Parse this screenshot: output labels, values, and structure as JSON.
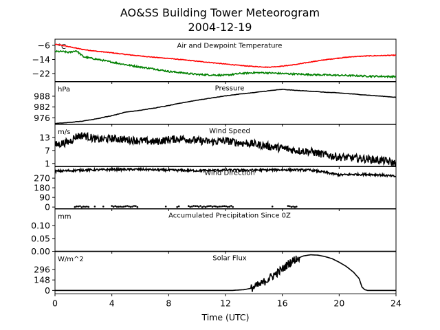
{
  "figure": {
    "title": "AO&SS Building Tower Meteorogram",
    "subtitle": "2004-12-19",
    "xlabel": "Time (UTC)",
    "x_ticks": [
      0,
      4,
      8,
      12,
      16,
      20,
      24
    ],
    "x_range": [
      0,
      24
    ]
  },
  "colors": {
    "temperature": "#ff0000",
    "dewpoint": "#008000",
    "line": "#000000"
  },
  "chart_data": [
    {
      "type": "line",
      "name": "temperature",
      "title": "Air and Dewpoint Temperature",
      "unit": "°C",
      "ylim": [
        -26.5,
        -2.5
      ],
      "y_ticks": [
        -6,
        -14,
        -22
      ],
      "x": [
        0,
        0.5,
        1,
        1.5,
        2,
        3,
        4,
        5,
        6,
        7,
        8,
        9,
        10,
        11,
        12,
        13,
        14,
        15,
        16,
        17,
        18,
        19,
        20,
        21,
        22,
        23,
        24
      ],
      "series": [
        {
          "name": "Air Temperature",
          "values": [
            -5.4,
            -6.0,
            -6.8,
            -7.6,
            -8.4,
            -9.4,
            -10.2,
            -11.2,
            -12.0,
            -12.8,
            -13.4,
            -14.2,
            -15.0,
            -15.8,
            -16.6,
            -17.4,
            -18.0,
            -18.4,
            -17.8,
            -16.8,
            -15.4,
            -14.2,
            -13.2,
            -12.4,
            -12.0,
            -11.8,
            -11.6
          ]
        },
        {
          "name": "Dewpoint",
          "values": [
            -9.5,
            -9.5,
            -10.0,
            -9.0,
            -12.5,
            -14.0,
            -15.5,
            -17.0,
            -18.3,
            -19.4,
            -20.8,
            -21.6,
            -22.5,
            -22.8,
            -23.0,
            -22.0,
            -21.5,
            -21.6,
            -22.0,
            -22.3,
            -22.6,
            -22.8,
            -23.0,
            -23.2,
            -23.5,
            -23.6,
            -23.8
          ]
        }
      ]
    },
    {
      "type": "line",
      "name": "pressure",
      "title": "Pressure",
      "unit": "hPa",
      "ylim": [
        972.5,
        996
      ],
      "y_ticks": [
        988,
        982,
        976
      ],
      "x": [
        0,
        1,
        2,
        3,
        4,
        5,
        6,
        7,
        8,
        9,
        10,
        11,
        12,
        13,
        14,
        15,
        16,
        17,
        18,
        19,
        20,
        21,
        22,
        23,
        24
      ],
      "values": [
        972.8,
        973.4,
        974.2,
        975.6,
        977.2,
        979.2,
        980.2,
        981.4,
        982.8,
        984.4,
        985.8,
        987.0,
        988.2,
        989.2,
        990.0,
        991.0,
        991.8,
        991.2,
        990.8,
        990.2,
        989.8,
        989.2,
        988.6,
        988.0,
        987.4
      ]
    },
    {
      "type": "line",
      "name": "wind-speed",
      "title": "Wind Speed",
      "unit": "m/s",
      "ylim": [
        -0.5,
        19
      ],
      "y_ticks": [
        13,
        7,
        1
      ],
      "x": [
        0,
        1,
        1.5,
        2,
        3,
        4,
        5,
        6,
        7,
        8,
        9,
        10,
        11,
        12,
        13,
        14,
        15,
        16,
        17,
        18,
        19,
        20,
        21,
        22,
        23,
        24
      ],
      "values": [
        9.5,
        11.0,
        13.5,
        14.0,
        12.0,
        12.5,
        12.0,
        11.5,
        11.0,
        12.0,
        12.5,
        11.5,
        11.0,
        11.5,
        10.5,
        10.0,
        9.0,
        8.0,
        7.0,
        6.5,
        5.0,
        4.0,
        3.5,
        3.0,
        2.5,
        1.0
      ],
      "noise": 1.8
    },
    {
      "type": "scatter",
      "name": "wind-direction",
      "title": "Wind Direction",
      "unit": "",
      "ylim": [
        -15,
        380
      ],
      "y_ticks": [
        270,
        180,
        90,
        0
      ],
      "x": [
        0,
        2,
        4,
        6,
        8,
        10,
        12,
        14,
        16,
        18,
        19,
        20,
        21,
        22,
        23,
        24
      ],
      "values": [
        335,
        345,
        350,
        352,
        345,
        340,
        345,
        345,
        348,
        345,
        325,
        300,
        305,
        305,
        300,
        285
      ],
      "noise": 10,
      "calm_x": [
        [
          1.4,
          2.4
        ],
        [
          2.8,
          2.8
        ],
        [
          3.4,
          3.4
        ],
        [
          4.0,
          5.9
        ],
        [
          7.8,
          7.8
        ],
        [
          8.6,
          8.8
        ],
        [
          9.4,
          12.6
        ],
        [
          15.3,
          15.3
        ],
        [
          16.4,
          17.1
        ]
      ],
      "calm_value": 5
    },
    {
      "type": "line",
      "name": "precipitation",
      "title": "Accumulated Precipitation Since 0Z",
      "unit": "mm",
      "ylim": [
        0,
        0.165
      ],
      "y_ticks": [
        0.1,
        0.05,
        0.0
      ],
      "x": [
        0,
        24
      ],
      "values": [
        0,
        0
      ]
    },
    {
      "type": "line",
      "name": "solar-flux",
      "title": "Solar Flux",
      "unit": "W/m^2",
      "ylim": [
        -50,
        550
      ],
      "y_ticks": [
        296,
        148,
        0
      ],
      "x": [
        0,
        12.5,
        13.3,
        13.8,
        14.5,
        15,
        15.5,
        16,
        16.5,
        17,
        17.5,
        18,
        18.5,
        19,
        19.5,
        20,
        20.5,
        21,
        21.4,
        21.6,
        21.8,
        22,
        24
      ],
      "values": [
        0,
        0,
        10,
        30,
        90,
        160,
        230,
        300,
        390,
        450,
        490,
        505,
        500,
        480,
        450,
        400,
        340,
        260,
        170,
        50,
        10,
        0,
        0
      ],
      "noise": 60
    }
  ]
}
